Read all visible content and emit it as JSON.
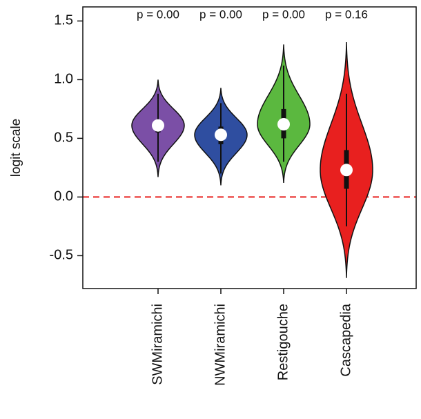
{
  "chart_data": {
    "type": "violin",
    "ylabel": "logit scale",
    "categories": [
      "SWMiramichi",
      "NWMiramichi",
      "Restigouche",
      "Cascapedia"
    ],
    "annotations": [
      "p = 0.00",
      "p = 0.00",
      "p = 0.00",
      "p = 0.16"
    ],
    "series": [
      {
        "color": "#7b4fa6",
        "min": 0.17,
        "max": 1.0,
        "median": 0.61,
        "q1": 0.55,
        "q3": 0.66,
        "whisker_low": 0.3,
        "whisker_high": 0.88
      },
      {
        "color": "#2f4ea0",
        "min": 0.1,
        "max": 0.93,
        "median": 0.53,
        "q1": 0.45,
        "q3": 0.6,
        "whisker_low": 0.2,
        "whisker_high": 0.8
      },
      {
        "color": "#5bb83f",
        "min": 0.12,
        "max": 1.3,
        "median": 0.62,
        "q1": 0.5,
        "q3": 0.75,
        "whisker_low": 0.3,
        "whisker_high": 1.12
      },
      {
        "color": "#e8201f",
        "min": -0.69,
        "max": 1.32,
        "median": 0.23,
        "q1": 0.07,
        "q3": 0.4,
        "whisker_low": -0.25,
        "whisker_high": 0.88
      }
    ],
    "reference_line": {
      "value": 0,
      "color": "#e8201f"
    },
    "ylim": [
      -0.78,
      1.62
    ],
    "yticks": [
      -0.5,
      {
        "value": 0,
        "label": "0.0"
      },
      0.5,
      {
        "value": 1,
        "label": "1.0"
      },
      1.5
    ]
  }
}
